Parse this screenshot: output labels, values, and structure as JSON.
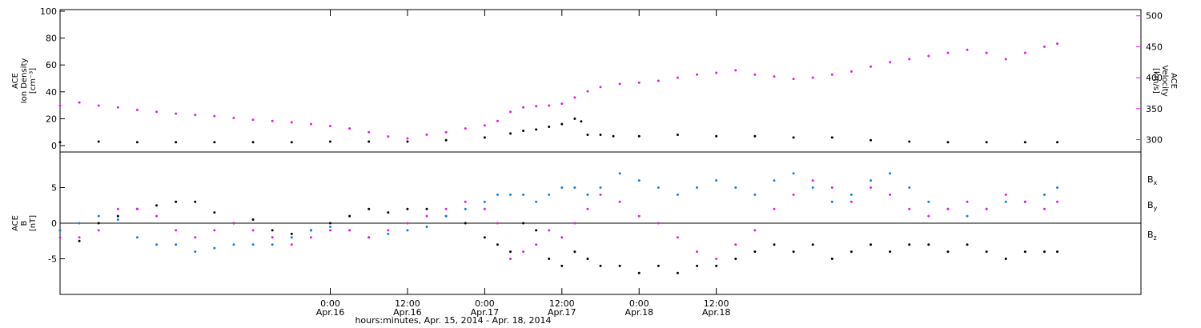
{
  "chart_data": [
    {
      "type": "scatter",
      "panel": "top",
      "ylabel_left_lines": [
        "ACE",
        "Ion Density",
        "[cm⁻³]"
      ],
      "ylabel_right_lines": [
        "ACE",
        "Velocity",
        "[km/s]"
      ],
      "ylim_left": [
        0,
        100
      ],
      "ylim_right": [
        280,
        510
      ],
      "yticks_left": [
        0,
        20,
        40,
        60,
        80,
        100
      ],
      "yticks_right": [
        300,
        350,
        400,
        450,
        500
      ],
      "colors": {
        "density": "#000000",
        "velocity": "#e11de1"
      },
      "series": [
        {
          "key": "density",
          "axis": "left",
          "values": [
            [
              0,
              2.5
            ],
            [
              6,
              3
            ],
            [
              12,
              2.5
            ],
            [
              18,
              2.5
            ],
            [
              24,
              2.5
            ],
            [
              30,
              2.5
            ],
            [
              36,
              2.5
            ],
            [
              42,
              3
            ],
            [
              48,
              3
            ],
            [
              54,
              3
            ],
            [
              60,
              4
            ],
            [
              66,
              6
            ],
            [
              70,
              9
            ],
            [
              72,
              11
            ],
            [
              74,
              12
            ],
            [
              76,
              14
            ],
            [
              78,
              16
            ],
            [
              80,
              20
            ],
            [
              81,
              18
            ],
            [
              82,
              8
            ],
            [
              84,
              8
            ],
            [
              86,
              7
            ],
            [
              90,
              7
            ],
            [
              96,
              8
            ],
            [
              102,
              7
            ],
            [
              108,
              7
            ],
            [
              114,
              6
            ],
            [
              120,
              6
            ],
            [
              126,
              4
            ],
            [
              132,
              3
            ],
            [
              138,
              2.5
            ],
            [
              144,
              2.5
            ],
            [
              150,
              2.5
            ],
            [
              155,
              2.5
            ]
          ]
        },
        {
          "key": "velocity",
          "axis": "right",
          "values": [
            [
              0,
              355
            ],
            [
              3,
              360
            ],
            [
              6,
              355
            ],
            [
              9,
              352
            ],
            [
              12,
              348
            ],
            [
              15,
              345
            ],
            [
              18,
              342
            ],
            [
              21,
              340
            ],
            [
              24,
              338
            ],
            [
              27,
              335
            ],
            [
              30,
              332
            ],
            [
              33,
              330
            ],
            [
              36,
              328
            ],
            [
              39,
              325
            ],
            [
              42,
              322
            ],
            [
              45,
              318
            ],
            [
              48,
              312
            ],
            [
              51,
              305
            ],
            [
              54,
              302
            ],
            [
              57,
              308
            ],
            [
              60,
              312
            ],
            [
              63,
              318
            ],
            [
              66,
              323
            ],
            [
              68,
              330
            ],
            [
              70,
              345
            ],
            [
              72,
              352
            ],
            [
              74,
              354
            ],
            [
              76,
              355
            ],
            [
              78,
              358
            ],
            [
              80,
              368
            ],
            [
              82,
              378
            ],
            [
              84,
              385
            ],
            [
              87,
              390
            ],
            [
              90,
              392
            ],
            [
              93,
              395
            ],
            [
              96,
              400
            ],
            [
              99,
              405
            ],
            [
              102,
              408
            ],
            [
              105,
              412
            ],
            [
              108,
              405
            ],
            [
              111,
              402
            ],
            [
              114,
              398
            ],
            [
              117,
              400
            ],
            [
              120,
              405
            ],
            [
              123,
              410
            ],
            [
              126,
              418
            ],
            [
              129,
              425
            ],
            [
              132,
              430
            ],
            [
              135,
              435
            ],
            [
              138,
              440
            ],
            [
              141,
              445
            ],
            [
              144,
              440
            ],
            [
              147,
              430
            ],
            [
              150,
              440
            ],
            [
              153,
              450
            ],
            [
              155,
              455
            ]
          ]
        }
      ]
    },
    {
      "type": "scatter",
      "panel": "bottom",
      "ylabel_left_lines": [
        "ACE",
        "B",
        "[nT]"
      ],
      "ylim": [
        -10,
        10
      ],
      "yticks": [
        -5,
        0,
        5
      ],
      "zero_line": true,
      "legend": [
        {
          "label": "B",
          "sub": "x",
          "color": "#000000"
        },
        {
          "label": "B",
          "sub": "y",
          "color": "#1180e0"
        },
        {
          "label": "B",
          "sub": "z",
          "color": "#e11de1"
        }
      ],
      "series": [
        {
          "key": "bx",
          "values": [
            [
              0,
              -1
            ],
            [
              3,
              -2.5
            ],
            [
              6,
              0
            ],
            [
              9,
              1
            ],
            [
              12,
              2
            ],
            [
              15,
              2.5
            ],
            [
              18,
              3
            ],
            [
              21,
              3
            ],
            [
              24,
              1.5
            ],
            [
              27,
              0
            ],
            [
              30,
              0.5
            ],
            [
              33,
              -1
            ],
            [
              36,
              -1.5
            ],
            [
              39,
              -1
            ],
            [
              42,
              0
            ],
            [
              45,
              1
            ],
            [
              48,
              2
            ],
            [
              51,
              1.5
            ],
            [
              54,
              2
            ],
            [
              57,
              2
            ],
            [
              60,
              1
            ],
            [
              63,
              0
            ],
            [
              66,
              -2
            ],
            [
              68,
              -3
            ],
            [
              70,
              -4
            ],
            [
              72,
              0
            ],
            [
              74,
              -1
            ],
            [
              76,
              -5
            ],
            [
              78,
              -6
            ],
            [
              80,
              -4
            ],
            [
              82,
              -5
            ],
            [
              84,
              -6
            ],
            [
              87,
              -6
            ],
            [
              90,
              -7
            ],
            [
              93,
              -6
            ],
            [
              96,
              -7
            ],
            [
              99,
              -6
            ],
            [
              102,
              -6
            ],
            [
              105,
              -5
            ],
            [
              108,
              -4
            ],
            [
              111,
              -3
            ],
            [
              114,
              -4
            ],
            [
              117,
              -3
            ],
            [
              120,
              -5
            ],
            [
              123,
              -4
            ],
            [
              126,
              -3
            ],
            [
              129,
              -4
            ],
            [
              132,
              -3
            ],
            [
              135,
              -3
            ],
            [
              138,
              -4
            ],
            [
              141,
              -3
            ],
            [
              144,
              -4
            ],
            [
              147,
              -5
            ],
            [
              150,
              -4
            ],
            [
              153,
              -4
            ],
            [
              155,
              -4
            ]
          ]
        },
        {
          "key": "by",
          "values": [
            [
              0,
              -1
            ],
            [
              3,
              0
            ],
            [
              6,
              1
            ],
            [
              9,
              0.5
            ],
            [
              12,
              -2
            ],
            [
              15,
              -3
            ],
            [
              18,
              -3
            ],
            [
              21,
              -4
            ],
            [
              24,
              -3.5
            ],
            [
              27,
              -3
            ],
            [
              30,
              -3
            ],
            [
              33,
              -3
            ],
            [
              36,
              -2
            ],
            [
              39,
              -1
            ],
            [
              42,
              -0.5
            ],
            [
              45,
              -1
            ],
            [
              48,
              -2
            ],
            [
              51,
              -1.5
            ],
            [
              54,
              -1
            ],
            [
              57,
              -0.5
            ],
            [
              60,
              1
            ],
            [
              63,
              2
            ],
            [
              66,
              3
            ],
            [
              68,
              4
            ],
            [
              70,
              4
            ],
            [
              72,
              4
            ],
            [
              74,
              3
            ],
            [
              76,
              4
            ],
            [
              78,
              5
            ],
            [
              80,
              5
            ],
            [
              82,
              4
            ],
            [
              84,
              5
            ],
            [
              87,
              7
            ],
            [
              90,
              6
            ],
            [
              93,
              5
            ],
            [
              96,
              4
            ],
            [
              99,
              5
            ],
            [
              102,
              6
            ],
            [
              105,
              5
            ],
            [
              108,
              4
            ],
            [
              111,
              6
            ],
            [
              114,
              7
            ],
            [
              117,
              5
            ],
            [
              120,
              3
            ],
            [
              123,
              4
            ],
            [
              126,
              6
            ],
            [
              129,
              7
            ],
            [
              132,
              5
            ],
            [
              135,
              3
            ],
            [
              138,
              2
            ],
            [
              141,
              1
            ],
            [
              144,
              2
            ],
            [
              147,
              3
            ],
            [
              150,
              3
            ],
            [
              153,
              4
            ],
            [
              155,
              5
            ]
          ]
        },
        {
          "key": "bz",
          "values": [
            [
              0,
              -2
            ],
            [
              3,
              -2
            ],
            [
              6,
              -1
            ],
            [
              9,
              2
            ],
            [
              12,
              2
            ],
            [
              15,
              1
            ],
            [
              18,
              -1
            ],
            [
              21,
              -2
            ],
            [
              24,
              -1
            ],
            [
              27,
              0
            ],
            [
              30,
              -1
            ],
            [
              33,
              -2
            ],
            [
              36,
              -3
            ],
            [
              39,
              -2
            ],
            [
              42,
              -1
            ],
            [
              45,
              -1
            ],
            [
              48,
              -2
            ],
            [
              51,
              -1
            ],
            [
              54,
              0
            ],
            [
              57,
              1
            ],
            [
              60,
              2
            ],
            [
              63,
              3
            ],
            [
              66,
              2
            ],
            [
              68,
              0
            ],
            [
              70,
              -5
            ],
            [
              72,
              -4
            ],
            [
              74,
              -3
            ],
            [
              76,
              -1
            ],
            [
              78,
              -2
            ],
            [
              80,
              0
            ],
            [
              82,
              2
            ],
            [
              84,
              4
            ],
            [
              87,
              3
            ],
            [
              90,
              1
            ],
            [
              93,
              0
            ],
            [
              96,
              -2
            ],
            [
              99,
              -4
            ],
            [
              102,
              -5
            ],
            [
              105,
              -3
            ],
            [
              108,
              -1
            ],
            [
              111,
              2
            ],
            [
              114,
              4
            ],
            [
              117,
              6
            ],
            [
              120,
              5
            ],
            [
              123,
              3
            ],
            [
              126,
              5
            ],
            [
              129,
              4
            ],
            [
              132,
              2
            ],
            [
              135,
              1
            ],
            [
              138,
              2
            ],
            [
              141,
              3
            ],
            [
              144,
              2
            ],
            [
              147,
              4
            ],
            [
              150,
              3
            ],
            [
              153,
              2
            ],
            [
              155,
              3
            ]
          ]
        }
      ]
    }
  ],
  "x_axis": {
    "xlim_hours": [
      0,
      168
    ],
    "tick_labels": [
      {
        "time": "0:00",
        "date": "Apr.16",
        "hour": 42
      },
      {
        "time": "12:00",
        "date": "Apr.16",
        "hour": 54
      },
      {
        "time": "0:00",
        "date": "Apr.17",
        "hour": 66
      },
      {
        "time": "12:00",
        "date": "Apr.17",
        "hour": 78
      },
      {
        "time": "0:00",
        "date": "Apr.18",
        "hour": 90
      },
      {
        "time": "12:00",
        "date": "Apr.18",
        "hour": 102
      }
    ],
    "label": "hours:minutes, Apr. 15, 2014 - Apr. 18, 2014"
  }
}
